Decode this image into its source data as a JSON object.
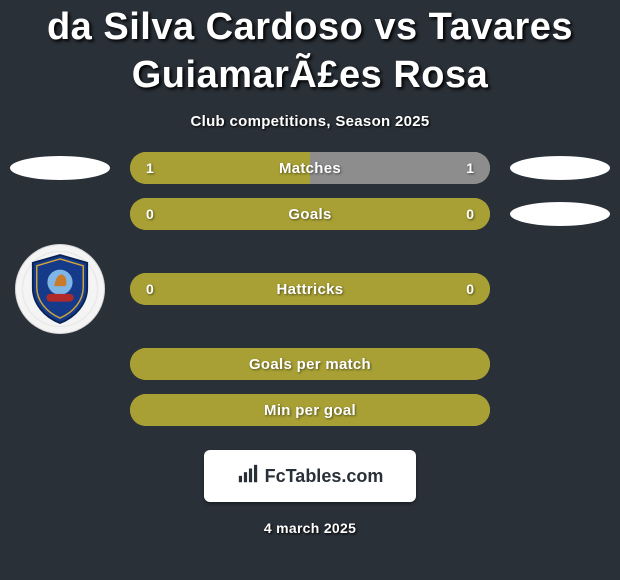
{
  "title": "da Silva Cardoso vs Tavares GuiamarÃ£es Rosa",
  "subtitle": "Club competitions, Season 2025",
  "colors": {
    "left": "#a8a035",
    "right": "#8d8d8d",
    "oval": "#ffffff",
    "bg": "#2a3038",
    "text": "#ffffff"
  },
  "stats": [
    {
      "label": "Matches",
      "left_val": "1",
      "right_val": "1",
      "left_pct": 50,
      "right_pct": 50,
      "show_left_oval": true,
      "show_right_oval": true,
      "show_crest": false
    },
    {
      "label": "Goals",
      "left_val": "0",
      "right_val": "0",
      "left_pct": 100,
      "right_pct": 0,
      "show_left_oval": false,
      "show_right_oval": true,
      "show_crest": false
    },
    {
      "label": "Hattricks",
      "left_val": "0",
      "right_val": "0",
      "left_pct": 100,
      "right_pct": 0,
      "show_left_oval": false,
      "show_right_oval": false,
      "show_crest": true
    },
    {
      "label": "Goals per match",
      "left_val": "",
      "right_val": "",
      "left_pct": 100,
      "right_pct": 0,
      "show_left_oval": false,
      "show_right_oval": false,
      "show_crest": false,
      "centered": true
    },
    {
      "label": "Min per goal",
      "left_val": "",
      "right_val": "",
      "left_pct": 100,
      "right_pct": 0,
      "show_left_oval": false,
      "show_right_oval": false,
      "show_crest": false,
      "centered": true
    }
  ],
  "brand": {
    "text": "FcTables.com"
  },
  "date": "4 march 2025"
}
